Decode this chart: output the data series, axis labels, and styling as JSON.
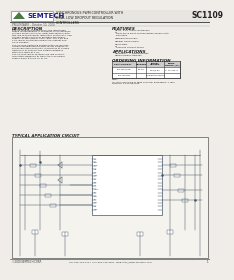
{
  "title_chip": "SC1109",
  "title_text": "SYNCHRONOUS PWM CONTROLLER WITH\nDUAL LOW DROPOUT REGULATION\nCONTROLLERS",
  "company": "SEMTECH",
  "bg_color": "#f0ede8",
  "header_bg": "#e8e5e0",
  "line_color": "#555555",
  "green_color": "#4a7c3f",
  "navy_color": "#1a1a8c",
  "text_color": "#222222",
  "preliminary_text": "PRELIMINARY - October 10, 2000",
  "description_title": "DESCRIPTION",
  "description_body": "The SC1109 was designed for the latest high\nspeed motherboards. It combines a synchronous\nvoltage mode controller (switching section) with\ntwo low dropout linear regulation controllers. The\nvoltage mode controller provides the power\nsupply for the system AGP-L bus. The 1.8V and\n2.5V linear controllers power the Chipset and\nclock circuitry.\n\nThe SC1109 switching section features lossless\ncurrent sensing and MOSFET driver outputs for\nenhanced noise immunity. It operates at a fixed\nfrequency of 200kHz; the output voltage is\ninternally fixed at 1.2V.\n\nThe SC1109 linear sections are low dropout\nregulators designed to track the 3.3V power\nsupply when it turns on or off.",
  "features_title": "FEATURES",
  "features": [
    "1.8V, 2.5V linear controllers",
    "LDOs track input voltage within 200mV until",
    "  regulation",
    "Integrated drivers",
    "Power Good Signal",
    "Soft Start",
    "Lossless Current Sense"
  ],
  "applications_title": "APPLICATIONS",
  "applications": [
    "Pentium® III Motherboards",
    "Triple power supplies"
  ],
  "ordering_title": "ORDERING INFORMATION",
  "ordering_headers_row1": [
    "Part Number¹¹",
    "Package",
    "Linear\nVoltage",
    "Temp.\nRange (Tₐ)"
  ],
  "ordering_rows": [
    [
      "SC1109CSTR",
      "SO-16",
      "1.8V/2.5V",
      "0° to 125°C"
    ],
    [
      "SC1109EVB",
      "",
      "Evaluation Board",
      ""
    ]
  ],
  "ordering_note": "Note:\n(1) Only available in tape and reel packaging, 4 reel\ncontains 1,000 devices.",
  "app_circuit_title": "TYPICAL APPLICATION CIRCUIT",
  "footer_left": "©2000 SEMTECH CORP.",
  "footer_right": "TEL 805-498-2111  FAX 805-498-3804  WEB http://www.semtech.com",
  "footer_page": "1",
  "schematic_color": "#445566",
  "circuit_bg": "#f5f3ee"
}
